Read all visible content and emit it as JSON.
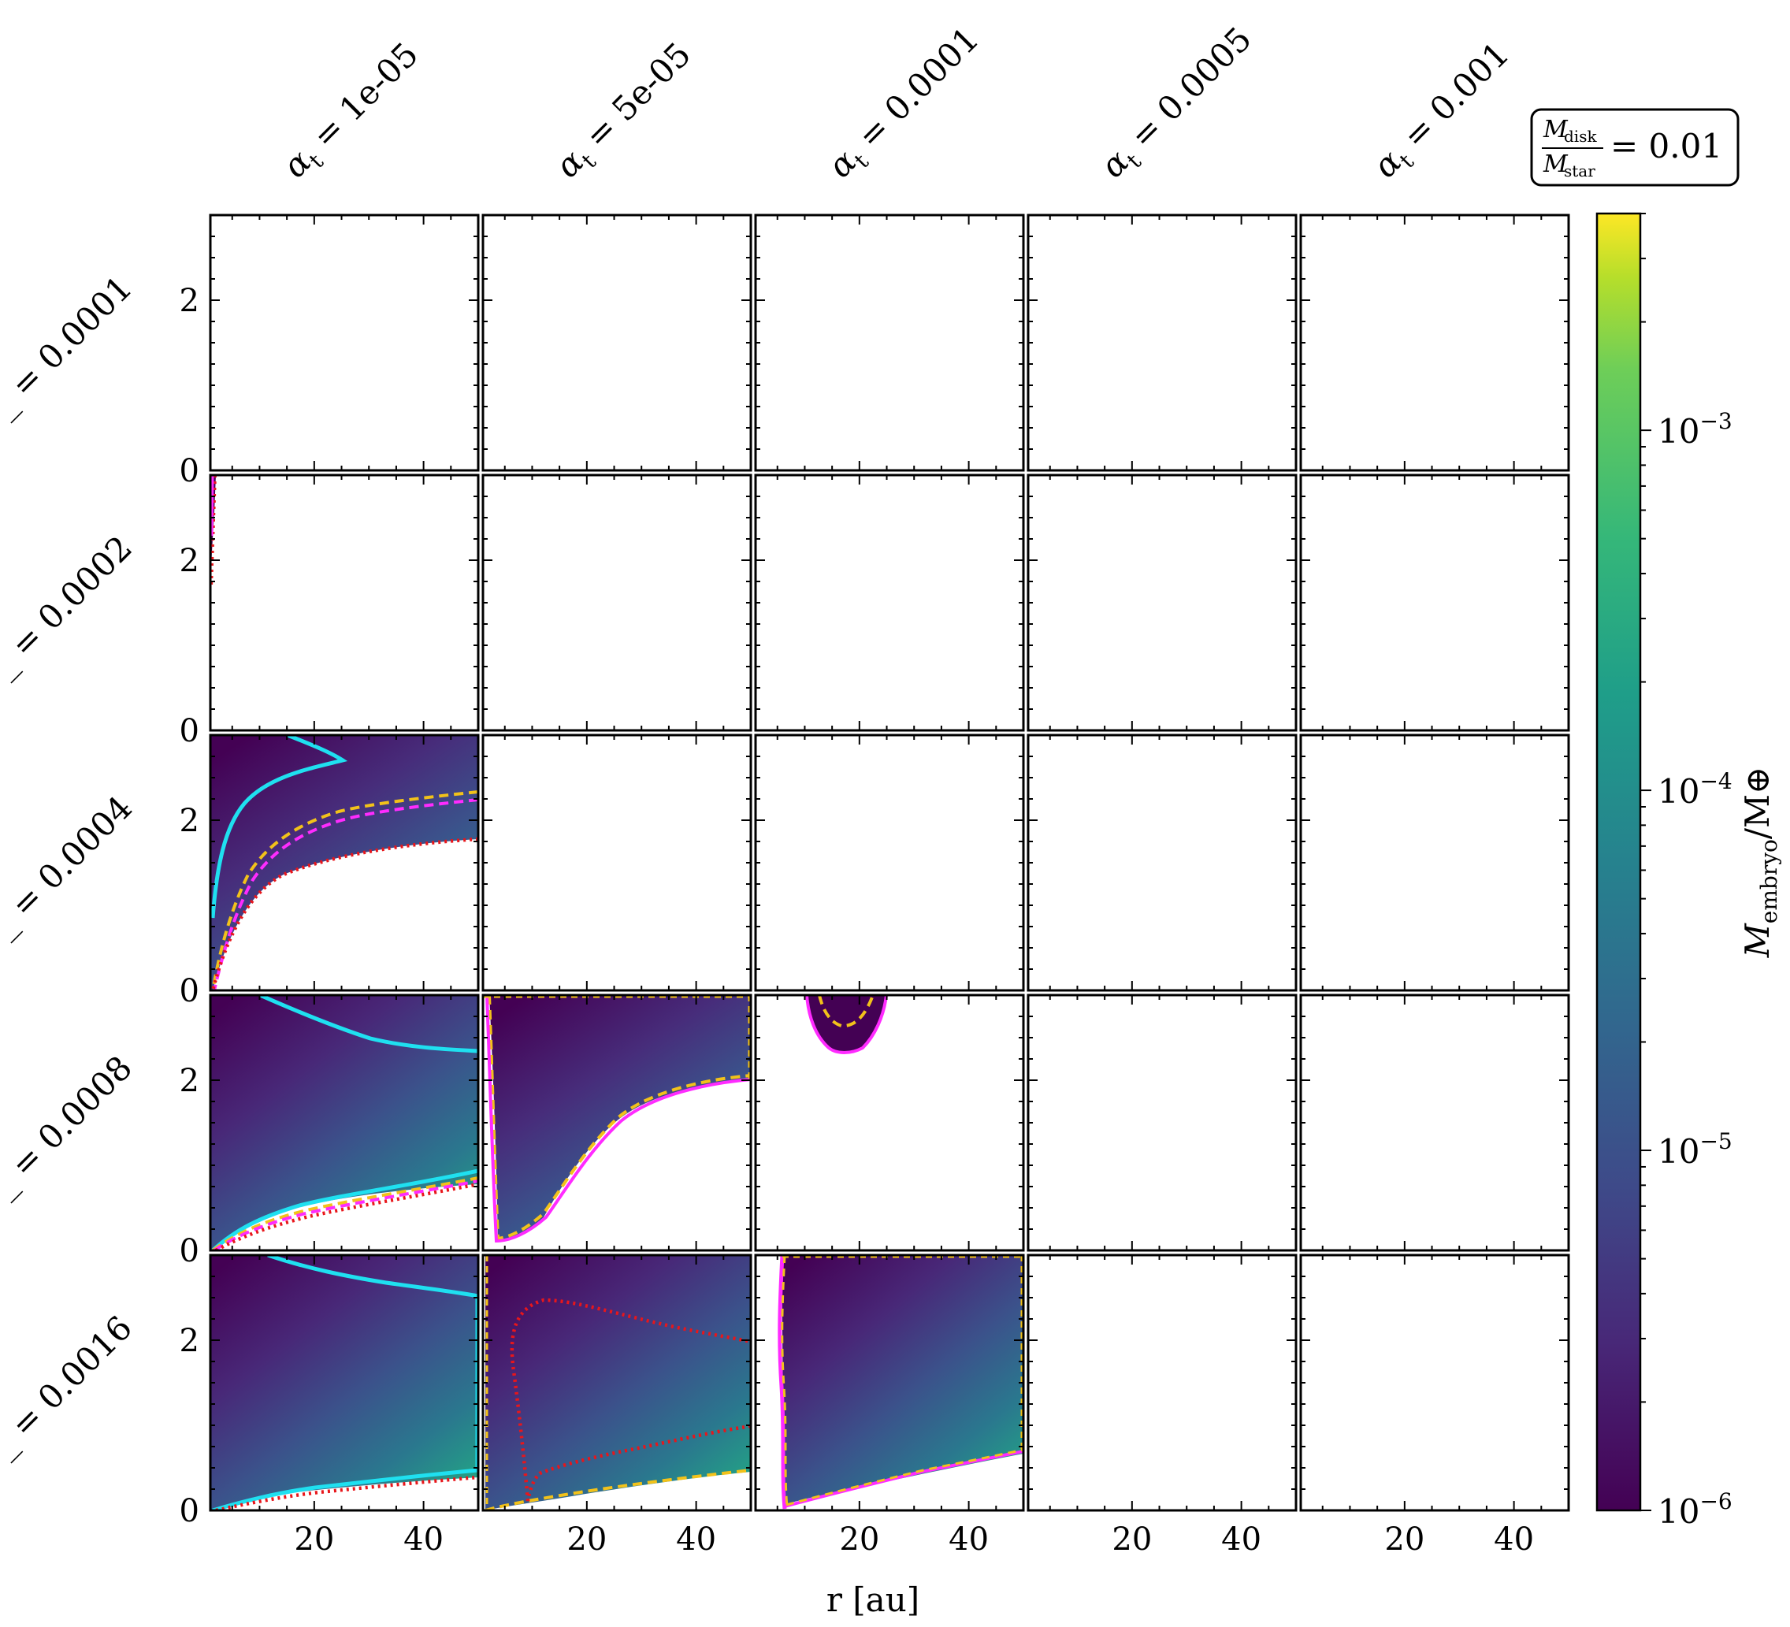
{
  "figure": {
    "col_labels": [
      "αt = 1e-05",
      "αt = 5e-05",
      "αt = 0.0001",
      "αt = 0.0005",
      "αt = 0.001"
    ],
    "col_prefix": "α",
    "col_sub": "t",
    "col_values": [
      "1e-05",
      "5e-05",
      "0.0001",
      "0.0005",
      "0.001"
    ],
    "row_values": [
      "0.0001",
      "0.0002",
      "0.0004",
      "0.0008",
      "0.0016"
    ],
    "row_prefix_visible": "_",
    "xlabel": "r [au]",
    "annotation": {
      "num": "M",
      "num_sub": "disk",
      "den": "M",
      "den_sub": "star",
      "value": "= 0.01"
    },
    "colorbar": {
      "label_main": "M",
      "label_sub": "embryo",
      "label_tail": "/M⊕",
      "scale": "log",
      "range": [
        1e-06,
        0.004
      ],
      "ticks": [
        {
          "base": "10",
          "exp": "−3",
          "value": 0.001
        },
        {
          "base": "10",
          "exp": "−4",
          "value": 0.0001
        },
        {
          "base": "10",
          "exp": "−5",
          "value": 1e-05
        },
        {
          "base": "10",
          "exp": "−6",
          "value": 1e-06
        }
      ],
      "colormap": "viridis"
    },
    "colors": {
      "cyan": "#1fe0f0",
      "gold": "#f2c21a",
      "magenta": "#ff2bff",
      "red": "#e8161b"
    }
  },
  "chart_data": {
    "type": "heatmap",
    "grid": "5x5",
    "x_range": [
      1,
      50
    ],
    "y_range": [
      0,
      3
    ],
    "x_ticks": [
      "20",
      "40"
    ],
    "y_ticks": [
      "0",
      "2"
    ],
    "xlabel": "r [au]",
    "colorbar_ticks": [
      "10−3",
      "10−4",
      "10−5",
      "10−6"
    ],
    "panels_with_data": [
      {
        "row": "0.0002",
        "col": "1e-05",
        "region": "thin sliver near r≈1",
        "lines": [
          "red",
          "magenta"
        ]
      },
      {
        "row": "0.0004",
        "col": "1e-05",
        "region": "filled above red dotted curve",
        "lines": [
          "cyan",
          "gold",
          "magenta",
          "red"
        ]
      },
      {
        "row": "0.0008",
        "col": "1e-05",
        "region": "filled above red dotted curve",
        "lines": [
          "cyan",
          "gold",
          "magenta",
          "red"
        ]
      },
      {
        "row": "0.0008",
        "col": "5e-05",
        "region": "filled above magenta curve",
        "lines": [
          "gold",
          "magenta"
        ]
      },
      {
        "row": "0.0008",
        "col": "0.0001",
        "region": "small blob near top at r≈15",
        "lines": [
          "gold",
          "magenta"
        ]
      },
      {
        "row": "0.0016",
        "col": "1e-05",
        "region": "filled above red dotted curve",
        "lines": [
          "cyan",
          "red"
        ]
      },
      {
        "row": "0.0016",
        "col": "5e-05",
        "region": "filled above gold curve",
        "lines": [
          "gold",
          "red"
        ]
      },
      {
        "row": "0.0016",
        "col": "0.0001",
        "region": "filled above gold curve, r>4",
        "lines": [
          "gold",
          "magenta"
        ]
      }
    ]
  }
}
